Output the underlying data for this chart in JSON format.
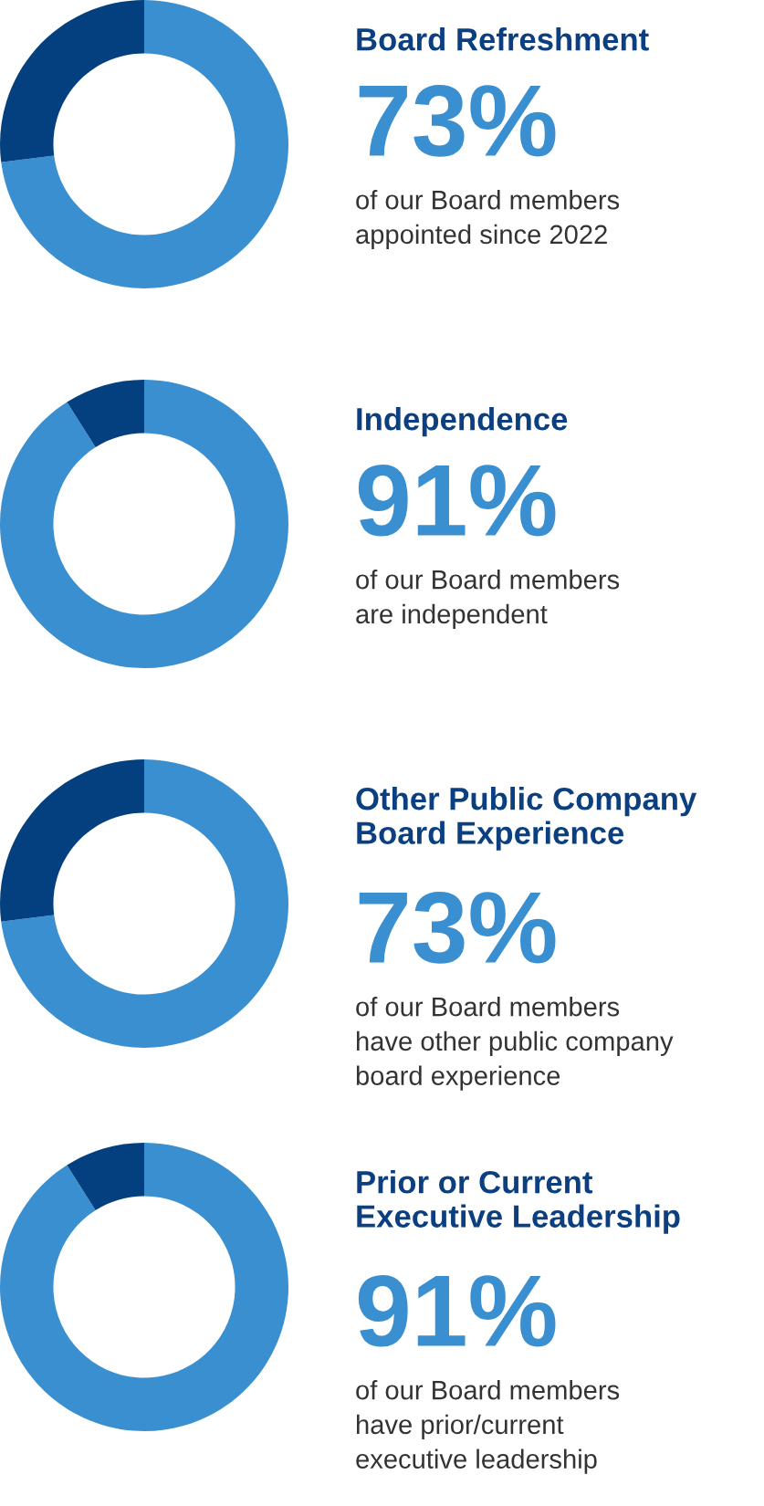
{
  "chart_data": [
    {
      "type": "donut",
      "title": "Board Refreshment",
      "categories": [
        null,
        null
      ],
      "values": [
        73,
        27
      ],
      "colors": [
        "#3a8fd0",
        "#04407f"
      ],
      "value_labels": [
        "73%",
        null
      ],
      "annotations": [
        "of our Board members\nappointed since 2022"
      ]
    },
    {
      "type": "donut",
      "title": "Independence",
      "categories": [
        null,
        null
      ],
      "values": [
        91,
        9
      ],
      "colors": [
        "#3a8fd0",
        "#04407f"
      ],
      "value_labels": [
        "91%",
        null
      ],
      "annotations": [
        "of our Board members\nare independent"
      ]
    },
    {
      "type": "donut",
      "title": "Other Public Company\nBoard Experience",
      "categories": [
        null,
        null
      ],
      "values": [
        73,
        27
      ],
      "colors": [
        "#3a8fd0",
        "#04407f"
      ],
      "value_labels": [
        "73%",
        null
      ],
      "annotations": [
        "of our Board members\nhave other public company\nboard experience"
      ]
    },
    {
      "type": "donut",
      "title": "Prior or Current\nExecutive Leadership",
      "categories": [
        null,
        null
      ],
      "values": [
        91,
        9
      ],
      "colors": [
        "#3a8fd0",
        "#04407f"
      ],
      "value_labels": [
        "91%",
        null
      ],
      "annotations": [
        "of our Board members\nhave prior/current\nexecutive leadership"
      ]
    }
  ]
}
